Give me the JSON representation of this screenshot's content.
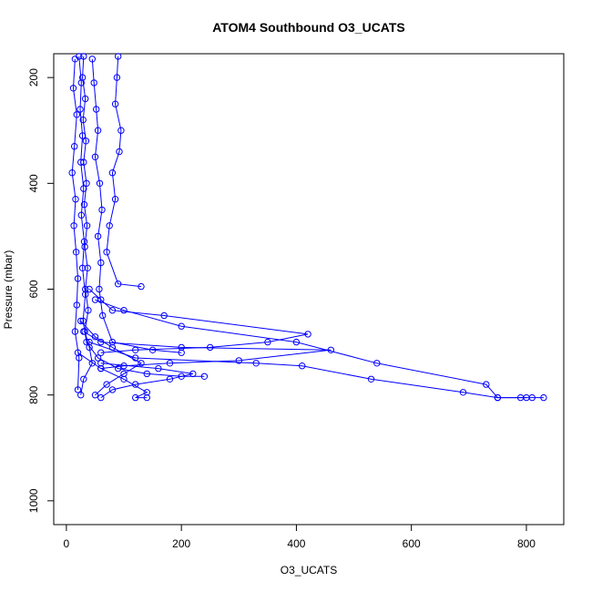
{
  "chart_data": {
    "type": "line",
    "title": "ATOM4 Southbound O3_UCATS",
    "xlabel": "O3_UCATS",
    "ylabel": "Pressure (mbar)",
    "xlim": [
      -22,
      865
    ],
    "ylim": [
      1045,
      155
    ],
    "y_reversed": true,
    "xticks": [
      0,
      200,
      400,
      600,
      800
    ],
    "yticks": [
      200,
      400,
      600,
      800,
      1000
    ],
    "grid": false,
    "legend": "none",
    "markers": "open-circle",
    "color": "#0000ff",
    "series": [
      {
        "points": [
          [
            30,
            160
          ],
          [
            28,
            200
          ],
          [
            33,
            240
          ],
          [
            29,
            280
          ],
          [
            34,
            320
          ],
          [
            30,
            360
          ],
          [
            35,
            400
          ],
          [
            31,
            440
          ],
          [
            36,
            480
          ],
          [
            32,
            520
          ],
          [
            37,
            560
          ],
          [
            33,
            600
          ],
          [
            38,
            640
          ],
          [
            32,
            680
          ],
          [
            40,
            710
          ],
          [
            45,
            740
          ],
          [
            30,
            770
          ],
          [
            25,
            800
          ]
        ]
      },
      {
        "points": [
          [
            22,
            160
          ],
          [
            26,
            210
          ],
          [
            24,
            260
          ],
          [
            28,
            310
          ],
          [
            25,
            360
          ],
          [
            30,
            410
          ],
          [
            26,
            460
          ],
          [
            31,
            510
          ],
          [
            28,
            560
          ],
          [
            33,
            610
          ],
          [
            29,
            660
          ],
          [
            35,
            700
          ],
          [
            55,
            730
          ],
          [
            90,
            750
          ],
          [
            140,
            760
          ],
          [
            200,
            765
          ],
          [
            240,
            765
          ]
        ]
      },
      {
        "points": [
          [
            45,
            165
          ],
          [
            48,
            210
          ],
          [
            52,
            260
          ],
          [
            55,
            300
          ],
          [
            50,
            350
          ],
          [
            58,
            400
          ],
          [
            62,
            450
          ],
          [
            55,
            500
          ],
          [
            60,
            550
          ],
          [
            57,
            600
          ],
          [
            63,
            650
          ],
          [
            80,
            700
          ],
          [
            150,
            715
          ],
          [
            200,
            720
          ]
        ]
      },
      {
        "points": [
          [
            15,
            165
          ],
          [
            12,
            220
          ],
          [
            18,
            270
          ],
          [
            14,
            330
          ],
          [
            10,
            380
          ],
          [
            16,
            430
          ],
          [
            13,
            480
          ],
          [
            17,
            530
          ],
          [
            20,
            580
          ],
          [
            18,
            630
          ],
          [
            15,
            680
          ],
          [
            22,
            730
          ],
          [
            20,
            790
          ]
        ]
      },
      {
        "points": [
          [
            90,
            160
          ],
          [
            88,
            200
          ],
          [
            85,
            250
          ],
          [
            95,
            300
          ],
          [
            92,
            340
          ],
          [
            80,
            380
          ],
          [
            85,
            430
          ],
          [
            75,
            480
          ],
          [
            70,
            530
          ],
          [
            90,
            590
          ],
          [
            130,
            595
          ]
        ]
      },
      {
        "points": [
          [
            40,
            600
          ],
          [
            60,
            620
          ],
          [
            80,
            640
          ],
          [
            170,
            650
          ],
          [
            420,
            685
          ],
          [
            350,
            700
          ],
          [
            250,
            710
          ],
          [
            120,
            715
          ],
          [
            60,
            720
          ]
        ]
      },
      {
        "points": [
          [
            30,
            680
          ],
          [
            60,
            700
          ],
          [
            200,
            710
          ],
          [
            460,
            715
          ],
          [
            300,
            735
          ],
          [
            180,
            740
          ],
          [
            100,
            745
          ],
          [
            60,
            750
          ]
        ]
      },
      {
        "points": [
          [
            50,
            620
          ],
          [
            100,
            640
          ],
          [
            200,
            670
          ],
          [
            400,
            700
          ],
          [
            540,
            740
          ],
          [
            730,
            780
          ],
          [
            750,
            805
          ],
          [
            790,
            805
          ],
          [
            810,
            805
          ],
          [
            830,
            805
          ]
        ]
      },
      {
        "points": [
          [
            40,
            700
          ],
          [
            120,
            730
          ],
          [
            330,
            740
          ],
          [
            410,
            745
          ],
          [
            530,
            770
          ],
          [
            690,
            795
          ],
          [
            750,
            805
          ],
          [
            800,
            805
          ]
        ]
      },
      {
        "points": [
          [
            25,
            660
          ],
          [
            50,
            690
          ],
          [
            80,
            710
          ],
          [
            130,
            740
          ],
          [
            100,
            760
          ],
          [
            70,
            780
          ],
          [
            50,
            800
          ]
        ]
      },
      {
        "points": [
          [
            20,
            720
          ],
          [
            60,
            750
          ],
          [
            100,
            770
          ],
          [
            140,
            795
          ],
          [
            120,
            805
          ],
          [
            140,
            805
          ]
        ]
      },
      {
        "points": [
          [
            60,
            740
          ],
          [
            160,
            750
          ],
          [
            220,
            760
          ],
          [
            180,
            770
          ],
          [
            120,
            780
          ],
          [
            80,
            790
          ],
          [
            60,
            805
          ]
        ]
      }
    ]
  }
}
